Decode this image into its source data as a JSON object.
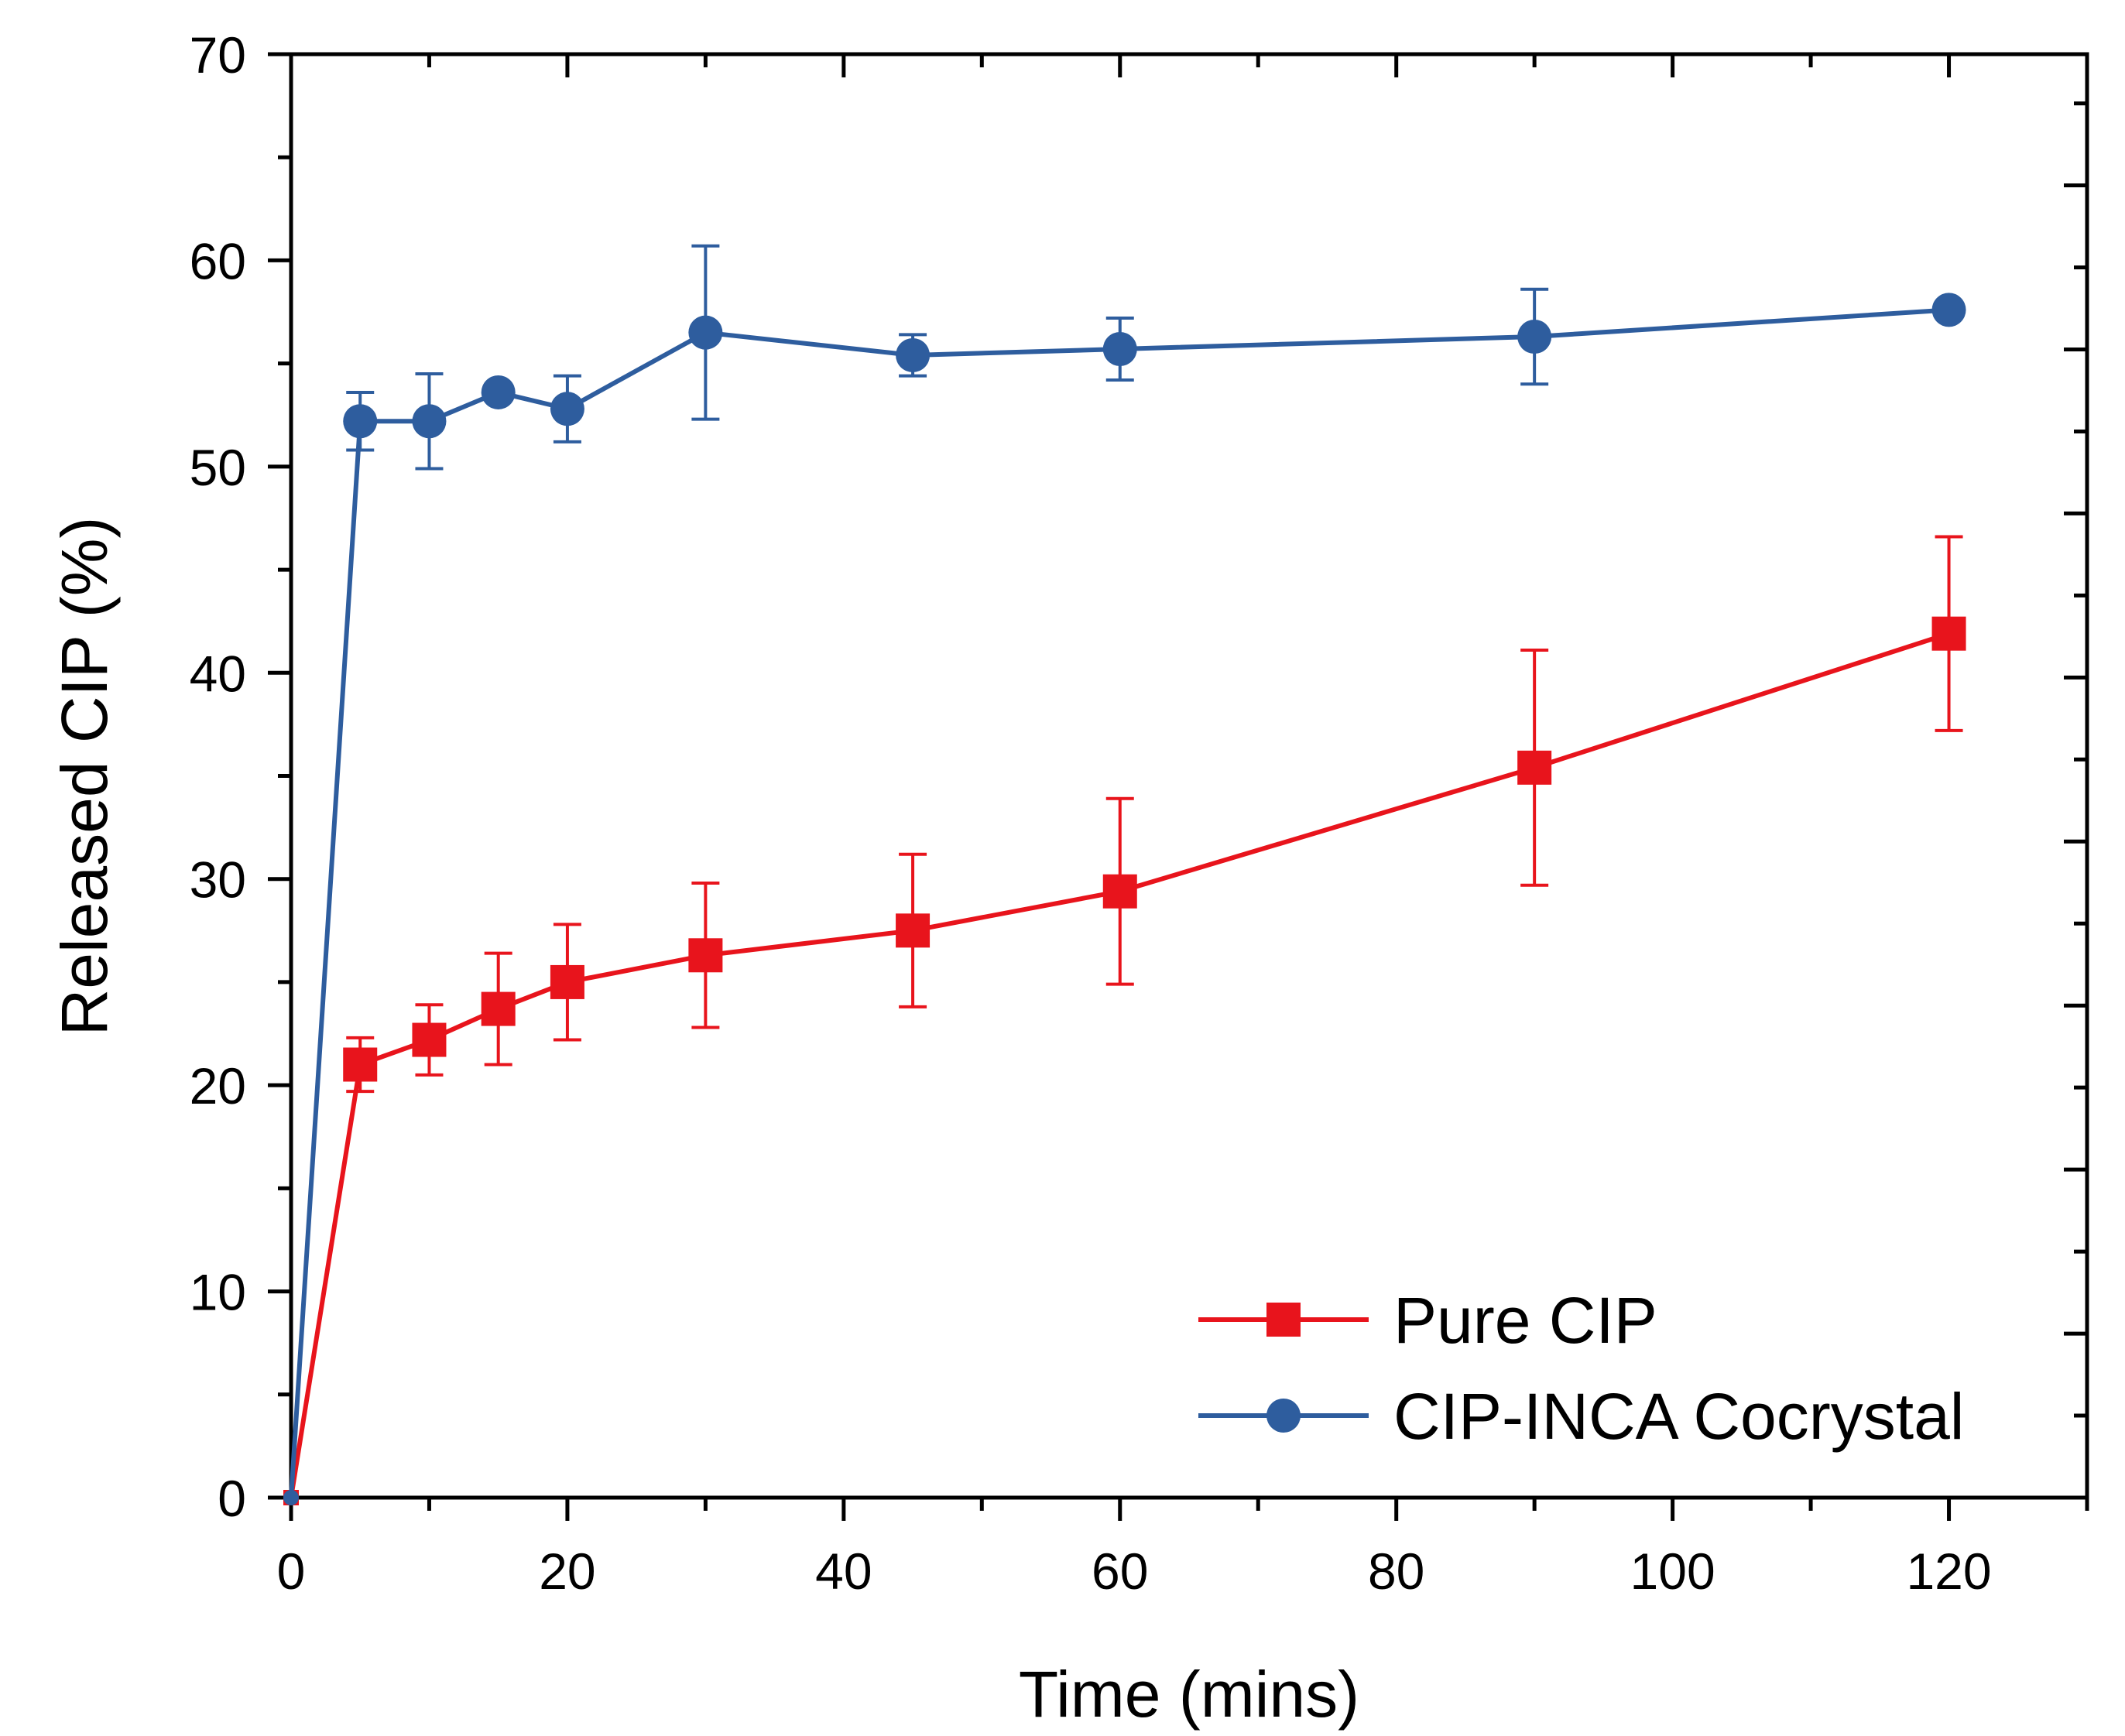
{
  "chart_data": {
    "type": "line",
    "title": "",
    "xlabel": "Time (mins)",
    "ylabel": "Released CIP (%)",
    "xlim": [
      0,
      130
    ],
    "ylim": [
      0,
      70
    ],
    "xticks": [
      0,
      20,
      40,
      60,
      80,
      100,
      120
    ],
    "yticks": [
      0,
      10,
      20,
      30,
      40,
      50,
      60,
      70
    ],
    "xtick_labels": [
      "0",
      "20",
      "40",
      "60",
      "80",
      "100",
      "120"
    ],
    "ytick_labels": [
      "0",
      "10",
      "20",
      "30",
      "40",
      "50",
      "60",
      "70"
    ],
    "grid": false,
    "legend_position": "bottom-right",
    "x": [
      0,
      5,
      10,
      15,
      20,
      30,
      45,
      60,
      90,
      120
    ],
    "series": [
      {
        "name": "Pure CIP",
        "color": "#e8141c",
        "marker": "square",
        "values": [
          0,
          21.0,
          22.2,
          23.7,
          25.0,
          26.3,
          27.5,
          29.4,
          35.4,
          41.9
        ],
        "errors": [
          0,
          1.3,
          1.7,
          2.7,
          2.8,
          3.5,
          3.7,
          4.5,
          5.7,
          4.7
        ]
      },
      {
        "name": "CIP-INCA Cocrystal",
        "color": "#2e5d9e",
        "marker": "circle",
        "values": [
          0,
          52.2,
          52.2,
          53.6,
          52.8,
          56.5,
          55.4,
          55.7,
          56.3,
          57.6
        ],
        "errors": [
          0,
          1.4,
          2.3,
          0,
          1.6,
          4.2,
          1.0,
          1.5,
          2.3,
          0
        ]
      }
    ]
  }
}
